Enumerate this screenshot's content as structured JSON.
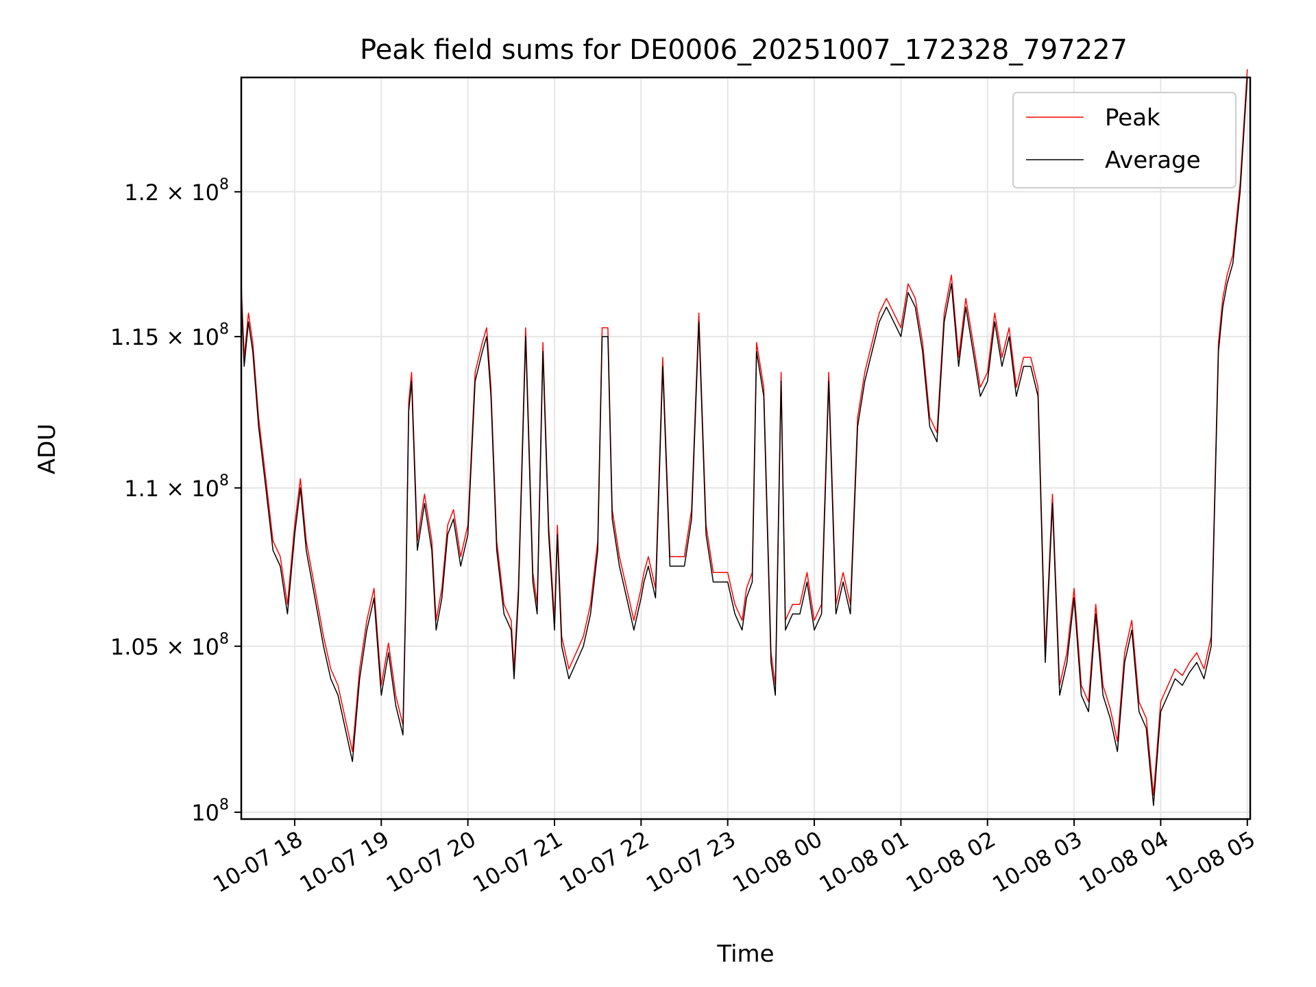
{
  "chart_data": {
    "type": "line",
    "title": "Peak field sums for DE0006_20251007_172328_797227",
    "xlabel": "Time",
    "ylabel": "ADU",
    "yscale": "log",
    "grid": true,
    "legend_position": "top-right",
    "xlim": [
      "2025-10-07 17:23",
      "2025-10-08 05:02"
    ],
    "ylim": [
      99800000,
      124100000
    ],
    "x_tick_labels": [
      "10-07 18",
      "10-07 19",
      "10-07 20",
      "10-07 21",
      "10-07 22",
      "10-07 23",
      "10-08 00",
      "10-08 01",
      "10-08 02",
      "10-08 03",
      "10-08 04",
      "10-08 05"
    ],
    "x_ticks": [
      "2025-10-07 18:00",
      "2025-10-07 19:00",
      "2025-10-07 20:00",
      "2025-10-07 21:00",
      "2025-10-07 22:00",
      "2025-10-07 23:00",
      "2025-10-08 00:00",
      "2025-10-08 01:00",
      "2025-10-08 02:00",
      "2025-10-08 03:00",
      "2025-10-08 04:00",
      "2025-10-08 05:00"
    ],
    "y_ticks": [
      {
        "value": 100000000,
        "mantissa": "",
        "exp": "8"
      },
      {
        "value": 105000000,
        "mantissa": "1.05",
        "exp": "8"
      },
      {
        "value": 110000000,
        "mantissa": "1.1",
        "exp": "8"
      },
      {
        "value": 115000000,
        "mantissa": "1.15",
        "exp": "8"
      },
      {
        "value": 120000000,
        "mantissa": "1.2",
        "exp": "8"
      }
    ],
    "y_tick_base": "10",
    "y_tick_times": "×",
    "series": [
      {
        "name": "Peak",
        "color": "#ff0000"
      },
      {
        "name": "Average",
        "color": "#000000"
      }
    ],
    "x": [
      "2025-10-07 17:23",
      "2025-10-07 17:25",
      "2025-10-07 17:28",
      "2025-10-07 17:31",
      "2025-10-07 17:35",
      "2025-10-07 17:40",
      "2025-10-07 17:45",
      "2025-10-07 17:50",
      "2025-10-07 17:55",
      "2025-10-07 18:00",
      "2025-10-07 18:04",
      "2025-10-07 18:08",
      "2025-10-07 18:12",
      "2025-10-07 18:16",
      "2025-10-07 18:20",
      "2025-10-07 18:25",
      "2025-10-07 18:30",
      "2025-10-07 18:35",
      "2025-10-07 18:40",
      "2025-10-07 18:45",
      "2025-10-07 18:50",
      "2025-10-07 18:55",
      "2025-10-07 19:00",
      "2025-10-07 19:05",
      "2025-10-07 19:10",
      "2025-10-07 19:15",
      "2025-10-07 19:17",
      "2025-10-07 19:19",
      "2025-10-07 19:21",
      "2025-10-07 19:25",
      "2025-10-07 19:30",
      "2025-10-07 19:35",
      "2025-10-07 19:38",
      "2025-10-07 19:42",
      "2025-10-07 19:46",
      "2025-10-07 19:50",
      "2025-10-07 19:55",
      "2025-10-07 20:00",
      "2025-10-07 20:05",
      "2025-10-07 20:10",
      "2025-10-07 20:13",
      "2025-10-07 20:16",
      "2025-10-07 20:20",
      "2025-10-07 20:25",
      "2025-10-07 20:30",
      "2025-10-07 20:32",
      "2025-10-07 20:35",
      "2025-10-07 20:40",
      "2025-10-07 20:45",
      "2025-10-07 20:48",
      "2025-10-07 20:52",
      "2025-10-07 20:56",
      "2025-10-07 21:00",
      "2025-10-07 21:02",
      "2025-10-07 21:05",
      "2025-10-07 21:10",
      "2025-10-07 21:15",
      "2025-10-07 21:20",
      "2025-10-07 21:25",
      "2025-10-07 21:30",
      "2025-10-07 21:33",
      "2025-10-07 21:37",
      "2025-10-07 21:40",
      "2025-10-07 21:45",
      "2025-10-07 21:50",
      "2025-10-07 21:55",
      "2025-10-07 22:00",
      "2025-10-07 22:02",
      "2025-10-07 22:05",
      "2025-10-07 22:10",
      "2025-10-07 22:15",
      "2025-10-07 22:20",
      "2025-10-07 22:25",
      "2025-10-07 22:30",
      "2025-10-07 22:35",
      "2025-10-07 22:40",
      "2025-10-07 22:45",
      "2025-10-07 22:50",
      "2025-10-07 22:55",
      "2025-10-07 23:00",
      "2025-10-07 23:05",
      "2025-10-07 23:10",
      "2025-10-07 23:13",
      "2025-10-07 23:17",
      "2025-10-07 23:20",
      "2025-10-07 23:25",
      "2025-10-07 23:30",
      "2025-10-07 23:33",
      "2025-10-07 23:37",
      "2025-10-07 23:40",
      "2025-10-07 23:45",
      "2025-10-07 23:50",
      "2025-10-07 23:55",
      "2025-10-08 00:00",
      "2025-10-08 00:05",
      "2025-10-08 00:10",
      "2025-10-08 00:15",
      "2025-10-08 00:20",
      "2025-10-08 00:25",
      "2025-10-08 00:30",
      "2025-10-08 00:35",
      "2025-10-08 00:40",
      "2025-10-08 00:45",
      "2025-10-08 00:50",
      "2025-10-08 00:55",
      "2025-10-08 01:00",
      "2025-10-08 01:05",
      "2025-10-08 01:10",
      "2025-10-08 01:15",
      "2025-10-08 01:20",
      "2025-10-08 01:25",
      "2025-10-08 01:30",
      "2025-10-08 01:35",
      "2025-10-08 01:40",
      "2025-10-08 01:45",
      "2025-10-08 01:50",
      "2025-10-08 01:55",
      "2025-10-08 02:00",
      "2025-10-08 02:05",
      "2025-10-08 02:10",
      "2025-10-08 02:15",
      "2025-10-08 02:20",
      "2025-10-08 02:25",
      "2025-10-08 02:30",
      "2025-10-08 02:35",
      "2025-10-08 02:40",
      "2025-10-08 02:45",
      "2025-10-08 02:50",
      "2025-10-08 02:55",
      "2025-10-08 03:00",
      "2025-10-08 03:05",
      "2025-10-08 03:10",
      "2025-10-08 03:15",
      "2025-10-08 03:20",
      "2025-10-08 03:25",
      "2025-10-08 03:30",
      "2025-10-08 03:35",
      "2025-10-08 03:40",
      "2025-10-08 03:45",
      "2025-10-08 03:50",
      "2025-10-08 03:55",
      "2025-10-08 04:00",
      "2025-10-08 04:05",
      "2025-10-08 04:10",
      "2025-10-08 04:15",
      "2025-10-08 04:20",
      "2025-10-08 04:25",
      "2025-10-08 04:30",
      "2025-10-08 04:35",
      "2025-10-08 04:40",
      "2025-10-08 04:43",
      "2025-10-08 04:46",
      "2025-10-08 04:50",
      "2025-10-08 04:55",
      "2025-10-08 05:00",
      "2025-10-08 05:02"
    ],
    "average": [
      116500000,
      114000000,
      115500000,
      114500000,
      112000000,
      110000000,
      108000000,
      107500000,
      106000000,
      108500000,
      110000000,
      108000000,
      107000000,
      106000000,
      105000000,
      104000000,
      103500000,
      102500000,
      101500000,
      104000000,
      105500000,
      106500000,
      103500000,
      104800000,
      103200000,
      102300000,
      106500000,
      112500000,
      113500000,
      108000000,
      109500000,
      108000000,
      105500000,
      106500000,
      108500000,
      109000000,
      107500000,
      108500000,
      113500000,
      114500000,
      115000000,
      113000000,
      108000000,
      106000000,
      105500000,
      104000000,
      106500000,
      115000000,
      107000000,
      106000000,
      114500000,
      108500000,
      105500000,
      108500000,
      105000000,
      104000000,
      104500000,
      105000000,
      106000000,
      108000000,
      115000000,
      115000000,
      109000000,
      107500000,
      106500000,
      105500000,
      106500000,
      107000000,
      107500000,
      106500000,
      114000000,
      107500000,
      107500000,
      107500000,
      109000000,
      115500000,
      108500000,
      107000000,
      107000000,
      107000000,
      106000000,
      105500000,
      106500000,
      107000000,
      114500000,
      113000000,
      104500000,
      103500000,
      113500000,
      105500000,
      106000000,
      106000000,
      107000000,
      105500000,
      106000000,
      113500000,
      106000000,
      107000000,
      106000000,
      112000000,
      113500000,
      114500000,
      115500000,
      116000000,
      115500000,
      115000000,
      116500000,
      116000000,
      114500000,
      112000000,
      111500000,
      115500000,
      116800000,
      114000000,
      116000000,
      114500000,
      113000000,
      113500000,
      115500000,
      114000000,
      115000000,
      113000000,
      114000000,
      114000000,
      113000000,
      104500000,
      109500000,
      103500000,
      104500000,
      106500000,
      103500000,
      103000000,
      106000000,
      103500000,
      102800000,
      101800000,
      104500000,
      105500000,
      103000000,
      102500000,
      100200000,
      103000000,
      103500000,
      104000000,
      103800000,
      104200000,
      104500000,
      104000000,
      105000000,
      114500000,
      116000000,
      116800000,
      117500000,
      120000000,
      124100000
    ],
    "peak": [
      116800000,
      114300000,
      115800000,
      114800000,
      112300000,
      110300000,
      108300000,
      107800000,
      106300000,
      108800000,
      110300000,
      108300000,
      107300000,
      106300000,
      105300000,
      104300000,
      103800000,
      102800000,
      101800000,
      104300000,
      105800000,
      106800000,
      103800000,
      105100000,
      103500000,
      102600000,
      106800000,
      112800000,
      113800000,
      108300000,
      109800000,
      108300000,
      105800000,
      106800000,
      108800000,
      109300000,
      107800000,
      108800000,
      113800000,
      114800000,
      115300000,
      113300000,
      108300000,
      106300000,
      105800000,
      104300000,
      106800000,
      115300000,
      107300000,
      106300000,
      114800000,
      108800000,
      105800000,
      108800000,
      105300000,
      104300000,
      104800000,
      105300000,
      106300000,
      108300000,
      115300000,
      115300000,
      109300000,
      107800000,
      106800000,
      105800000,
      106800000,
      107300000,
      107800000,
      106800000,
      114300000,
      107800000,
      107800000,
      107800000,
      109300000,
      115800000,
      108800000,
      107300000,
      107300000,
      107300000,
      106300000,
      105800000,
      106800000,
      107300000,
      114800000,
      113300000,
      104800000,
      103800000,
      113800000,
      105800000,
      106300000,
      106300000,
      107300000,
      105800000,
      106300000,
      113800000,
      106300000,
      107300000,
      106300000,
      112300000,
      113800000,
      114800000,
      115800000,
      116300000,
      115800000,
      115300000,
      116800000,
      116300000,
      114800000,
      112300000,
      111800000,
      115800000,
      117100000,
      114300000,
      116300000,
      114800000,
      113300000,
      113800000,
      115800000,
      114300000,
      115300000,
      113300000,
      114300000,
      114300000,
      113300000,
      104800000,
      109800000,
      103800000,
      104800000,
      106800000,
      103800000,
      103300000,
      106300000,
      103800000,
      103100000,
      102100000,
      104800000,
      105800000,
      103300000,
      102800000,
      100500000,
      103300000,
      103800000,
      104300000,
      104100000,
      104500000,
      104800000,
      104300000,
      105300000,
      114800000,
      116300000,
      117100000,
      117800000,
      120300000,
      124400000
    ]
  }
}
